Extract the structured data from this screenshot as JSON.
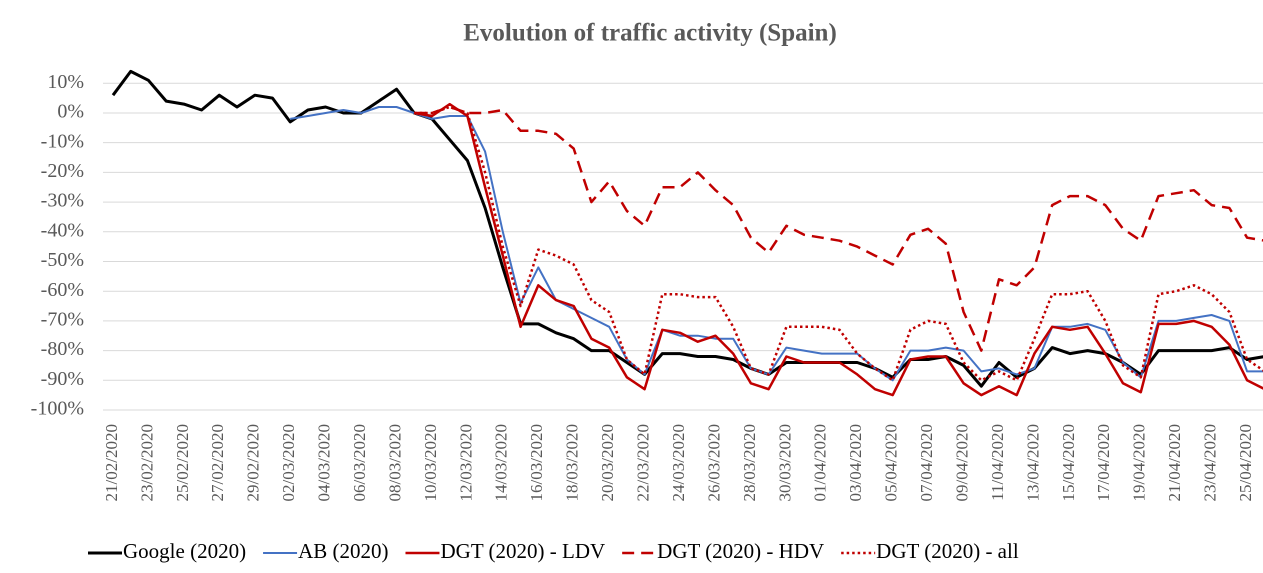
{
  "chart_data": {
    "type": "line",
    "title": "Evolution of traffic activity (Spain)",
    "categories": [
      "21/02/2020",
      null,
      "23/02/2020",
      null,
      "25/02/2020",
      null,
      "27/02/2020",
      null,
      "29/02/2020",
      null,
      "02/03/2020",
      null,
      "04/03/2020",
      null,
      "06/03/2020",
      null,
      "08/03/2020",
      null,
      "10/03/2020",
      null,
      "12/03/2020",
      null,
      "14/03/2020",
      null,
      "16/03/2020",
      null,
      "18/03/2020",
      null,
      "20/03/2020",
      null,
      "22/03/2020",
      null,
      "24/03/2020",
      null,
      "26/03/2020",
      null,
      "28/03/2020",
      null,
      "30/03/2020",
      null,
      "01/04/2020",
      null,
      "03/04/2020",
      null,
      "05/04/2020",
      null,
      "07/04/2020",
      null,
      "09/04/2020",
      null,
      "11/04/2020",
      null,
      "13/04/2020",
      null,
      "15/04/2020",
      null,
      "17/04/2020",
      null,
      "19/04/2020",
      null,
      "21/04/2020",
      null,
      "23/04/2020",
      null,
      "25/04/2020",
      null
    ],
    "series": [
      {
        "name": "Google (2020)",
        "color": "#000000",
        "style": "solid",
        "width": 3,
        "values": [
          6,
          14,
          11,
          4,
          3,
          1,
          6,
          2,
          6,
          5,
          -3,
          1,
          2,
          0,
          0,
          4,
          8,
          0,
          -2,
          -9,
          -16,
          -32,
          -52,
          -71,
          -71,
          -74,
          -76,
          -80,
          -80,
          -84,
          -88,
          -81,
          -81,
          -82,
          -82,
          -83,
          -86,
          -88,
          -84,
          -84,
          -84,
          -84,
          -84,
          -86,
          -89,
          -83,
          -83,
          -82,
          -85,
          -92,
          -84,
          -89,
          -86,
          -79,
          -81,
          -80,
          -81,
          -84,
          -88,
          -80,
          -80,
          -80,
          -80,
          -79,
          -83,
          -82
        ]
      },
      {
        "name": "AB (2020)",
        "color": "#4472c4",
        "style": "solid",
        "width": 2,
        "values": [
          null,
          null,
          null,
          null,
          null,
          null,
          null,
          null,
          null,
          null,
          -2,
          -1,
          0,
          1,
          0,
          2,
          2,
          0,
          -2,
          -1,
          -1,
          -13,
          -40,
          -64,
          -52,
          -63,
          -66,
          -69,
          -72,
          -83,
          -88,
          -73,
          -75,
          -75,
          -76,
          -76,
          -86,
          -88,
          -79,
          -80,
          -81,
          -81,
          -81,
          -86,
          -90,
          -80,
          -80,
          -79,
          -80,
          -87,
          -86,
          -88,
          -86,
          -72,
          -72,
          -71,
          -73,
          -84,
          -89,
          -70,
          -70,
          -69,
          -68,
          -70,
          -87,
          -87
        ]
      },
      {
        "name": "DGT (2020) - LDV",
        "color": "#c00000",
        "style": "solid",
        "width": 2.5,
        "values": [
          null,
          null,
          null,
          null,
          null,
          null,
          null,
          null,
          null,
          null,
          null,
          null,
          null,
          null,
          null,
          null,
          null,
          0,
          -1,
          3,
          -1,
          -25,
          -48,
          -72,
          -58,
          -63,
          -65,
          -76,
          -79,
          -89,
          -93,
          -73,
          -74,
          -77,
          -75,
          -81,
          -91,
          -93,
          -82,
          -84,
          -84,
          -84,
          -88,
          -93,
          -95,
          -83,
          -82,
          -82,
          -91,
          -95,
          -92,
          -95,
          -81,
          -72,
          -73,
          -72,
          -81,
          -91,
          -94,
          -71,
          -71,
          -70,
          -72,
          -78,
          -90,
          -93
        ]
      },
      {
        "name": "DGT (2020) - HDV",
        "color": "#c00000",
        "style": "dashed",
        "width": 2.5,
        "values": [
          null,
          null,
          null,
          null,
          null,
          null,
          null,
          null,
          null,
          null,
          null,
          null,
          null,
          null,
          null,
          null,
          null,
          0,
          0,
          2,
          0,
          0,
          1,
          -6,
          -6,
          -7,
          -12,
          -30,
          -23,
          -33,
          -38,
          -25,
          -25,
          -20,
          -26,
          -31,
          -42,
          -47,
          -38,
          -41,
          -42,
          -43,
          -45,
          -48,
          -51,
          -41,
          -39,
          -44,
          -67,
          -80,
          -56,
          -58,
          -52,
          -31,
          -28,
          -28,
          -31,
          -39,
          -43,
          -28,
          -27,
          -26,
          -31,
          -32,
          -42,
          -43
        ]
      },
      {
        "name": "DGT (2020) - all",
        "color": "#c00000",
        "style": "dotted",
        "width": 2.5,
        "values": [
          null,
          null,
          null,
          null,
          null,
          null,
          null,
          null,
          null,
          null,
          null,
          null,
          null,
          null,
          null,
          null,
          null,
          0,
          0,
          2,
          0,
          -20,
          -45,
          -65,
          -46,
          -48,
          -51,
          -63,
          -67,
          -83,
          -88,
          -61,
          -61,
          -62,
          -62,
          -72,
          -86,
          -88,
          -72,
          -72,
          -72,
          -73,
          -81,
          -86,
          -90,
          -73,
          -70,
          -71,
          -84,
          -90,
          -87,
          -90,
          -76,
          -61,
          -61,
          -60,
          -70,
          -85,
          -89,
          -61,
          -60,
          -58,
          -61,
          -67,
          -83,
          -87
        ]
      }
    ],
    "ylim": [
      -100,
      14
    ],
    "yticks": [
      {
        "value": -100,
        "label": "-100%"
      },
      {
        "value": -90,
        "label": "-90%"
      },
      {
        "value": -80,
        "label": "-80%"
      },
      {
        "value": -70,
        "label": "-70%"
      },
      {
        "value": -60,
        "label": "-60%"
      },
      {
        "value": -50,
        "label": "-50%"
      },
      {
        "value": -40,
        "label": "-40%"
      },
      {
        "value": -30,
        "label": "-30%"
      },
      {
        "value": -20,
        "label": "-20%"
      },
      {
        "value": -10,
        "label": "-10%"
      },
      {
        "value": 0,
        "label": "0%"
      },
      {
        "value": 10,
        "label": "10%"
      }
    ],
    "grid": true,
    "legend": "bottom"
  }
}
